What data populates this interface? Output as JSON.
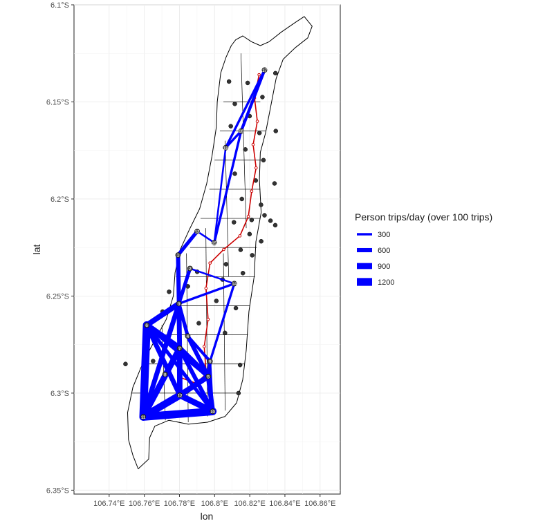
{
  "chart_data": {
    "type": "map",
    "xlabel": "lon",
    "ylabel": "lat",
    "x_ticks": [
      "106.74°E",
      "106.76°E",
      "106.78°E",
      "106.8°E",
      "106.82°E",
      "106.84°E",
      "106.86°E"
    ],
    "y_ticks": [
      "6.1°S",
      "6.15°S",
      "6.2°S",
      "6.25°S",
      "6.3°S",
      "6.35°S"
    ],
    "xlim": [
      106.72,
      106.8715
    ],
    "ylim": [
      -6.352,
      -6.1
    ],
    "grid": true,
    "legend": {
      "title": "Person trips/day (over 100 trips)",
      "position": "right",
      "items": [
        {
          "label": "300",
          "value": 300
        },
        {
          "label": "600",
          "value": 600
        },
        {
          "label": "900",
          "value": 900
        },
        {
          "label": "1200",
          "value": 1200
        }
      ]
    },
    "colors": {
      "flow": "#0000ff",
      "rail": "#cc0000",
      "boundary": "#000000",
      "centroid": "#333333",
      "grid": "#ebebeb"
    },
    "outline": [
      [
        106.8035,
        -6.135
      ],
      [
        106.8065,
        -6.127
      ],
      [
        106.8095,
        -6.121
      ],
      [
        106.812,
        -6.118
      ],
      [
        106.816,
        -6.116
      ],
      [
        106.821,
        -6.119
      ],
      [
        106.826,
        -6.121
      ],
      [
        106.831,
        -6.119
      ],
      [
        106.838,
        -6.114
      ],
      [
        106.846,
        -6.109
      ],
      [
        106.851,
        -6.106
      ],
      [
        106.8555,
        -6.111
      ],
      [
        106.853,
        -6.117
      ],
      [
        106.846,
        -6.122
      ],
      [
        106.839,
        -6.128
      ],
      [
        106.835,
        -6.138
      ],
      [
        106.832,
        -6.152
      ],
      [
        106.829,
        -6.166
      ],
      [
        106.826,
        -6.176
      ],
      [
        106.8255,
        -6.19
      ],
      [
        106.8265,
        -6.207
      ],
      [
        106.8235,
        -6.222
      ],
      [
        106.8225,
        -6.24
      ],
      [
        106.8195,
        -6.258
      ],
      [
        106.818,
        -6.278
      ],
      [
        106.816,
        -6.293
      ],
      [
        106.8125,
        -6.305
      ],
      [
        106.806,
        -6.312
      ],
      [
        106.796,
        -6.315
      ],
      [
        106.785,
        -6.316
      ],
      [
        106.774,
        -6.314
      ],
      [
        106.766,
        -6.317
      ],
      [
        106.763,
        -6.323
      ],
      [
        106.7625,
        -6.334
      ],
      [
        106.7565,
        -6.339
      ],
      [
        106.7535,
        -6.332
      ],
      [
        106.751,
        -6.324
      ],
      [
        106.7505,
        -6.31
      ],
      [
        106.7535,
        -6.297
      ],
      [
        106.758,
        -6.287
      ],
      [
        106.7635,
        -6.277
      ],
      [
        106.7725,
        -6.262
      ],
      [
        106.7765,
        -6.25
      ],
      [
        106.7775,
        -6.238
      ],
      [
        106.7805,
        -6.226
      ],
      [
        106.7855,
        -6.216
      ],
      [
        106.7915,
        -6.205
      ],
      [
        106.7955,
        -6.192
      ],
      [
        106.7985,
        -6.178
      ],
      [
        106.801,
        -6.163
      ],
      [
        106.8015,
        -6.15
      ]
    ],
    "districts": [
      [
        [
          106.805,
          -6.15
        ],
        [
          106.826,
          -6.15
        ]
      ],
      [
        [
          106.803,
          -6.165
        ],
        [
          106.829,
          -6.165
        ]
      ],
      [
        [
          106.8,
          -6.18
        ],
        [
          106.827,
          -6.18
        ]
      ],
      [
        [
          106.797,
          -6.195
        ],
        [
          106.826,
          -6.195
        ]
      ],
      [
        [
          106.792,
          -6.21
        ],
        [
          106.826,
          -6.21
        ]
      ],
      [
        [
          106.786,
          -6.225
        ],
        [
          106.824,
          -6.225
        ]
      ],
      [
        [
          106.778,
          -6.24
        ],
        [
          106.823,
          -6.24
        ]
      ],
      [
        [
          106.775,
          -6.255
        ],
        [
          106.82,
          -6.255
        ]
      ],
      [
        [
          106.768,
          -6.27
        ],
        [
          106.819,
          -6.27
        ]
      ],
      [
        [
          106.76,
          -6.285
        ],
        [
          106.817,
          -6.285
        ]
      ],
      [
        [
          106.753,
          -6.3
        ],
        [
          106.814,
          -6.3
        ]
      ],
      [
        [
          106.815,
          -6.125
        ],
        [
          106.818,
          -6.215
        ]
      ],
      [
        [
          106.806,
          -6.17
        ],
        [
          106.808,
          -6.24
        ]
      ],
      [
        [
          106.795,
          -6.215
        ],
        [
          106.796,
          -6.312
        ]
      ],
      [
        [
          106.784,
          -6.228
        ],
        [
          106.785,
          -6.315
        ]
      ],
      [
        [
          106.77,
          -6.265
        ],
        [
          106.772,
          -6.314
        ]
      ],
      [
        [
          106.805,
          -6.228
        ],
        [
          106.806,
          -6.309
        ]
      ]
    ],
    "nodes": [
      {
        "id": "1",
        "lon": 106.7792,
        "lat": -6.2289
      },
      {
        "id": "2",
        "lon": 106.786,
        "lat": -6.2358
      },
      {
        "id": "3",
        "lon": 106.7797,
        "lat": -6.2539
      },
      {
        "id": "4",
        "lon": 106.7847,
        "lat": -6.2706
      },
      {
        "id": "5",
        "lon": 106.7964,
        "lat": -6.2914
      },
      {
        "id": "6",
        "lon": 106.7614,
        "lat": -6.265
      },
      {
        "id": "7",
        "lon": 106.7801,
        "lat": -6.2769
      },
      {
        "id": "8",
        "lon": 106.7718,
        "lat": -6.2903
      },
      {
        "id": "9",
        "lon": 106.7974,
        "lat": -6.2836
      },
      {
        "id": "10",
        "lon": 106.7989,
        "lat": -6.3094
      },
      {
        "id": "11",
        "lon": 106.7594,
        "lat": -6.3122
      },
      {
        "id": "12",
        "lon": 106.7802,
        "lat": -6.3011
      },
      {
        "id": "13",
        "lon": 106.7901,
        "lat": -6.2167
      },
      {
        "id": "14",
        "lon": 106.8112,
        "lat": -6.2436
      },
      {
        "id": "15",
        "lon": 106.7998,
        "lat": -6.2225
      },
      {
        "id": "16",
        "lon": 106.8151,
        "lat": -6.165
      },
      {
        "id": "17",
        "lon": 106.8284,
        "lat": -6.1336
      },
      {
        "id": "18",
        "lon": 106.8063,
        "lat": -6.1736
      }
    ],
    "flows": [
      {
        "from": "11",
        "to": "10",
        "trips": 1200
      },
      {
        "from": "11",
        "to": "6",
        "trips": 1200
      },
      {
        "from": "11",
        "to": "12",
        "trips": 1100
      },
      {
        "from": "11",
        "to": "7",
        "trips": 900
      },
      {
        "from": "11",
        "to": "3",
        "trips": 700
      },
      {
        "from": "11",
        "to": "5",
        "trips": 600
      },
      {
        "from": "6",
        "to": "7",
        "trips": 900
      },
      {
        "from": "6",
        "to": "3",
        "trips": 800
      },
      {
        "from": "6",
        "to": "12",
        "trips": 700
      },
      {
        "from": "6",
        "to": "5",
        "trips": 600
      },
      {
        "from": "6",
        "to": "10",
        "trips": 500
      },
      {
        "from": "12",
        "to": "10",
        "trips": 900
      },
      {
        "from": "12",
        "to": "5",
        "trips": 800
      },
      {
        "from": "12",
        "to": "7",
        "trips": 800
      },
      {
        "from": "7",
        "to": "5",
        "trips": 800
      },
      {
        "from": "7",
        "to": "3",
        "trips": 700
      },
      {
        "from": "7",
        "to": "10",
        "trips": 600
      },
      {
        "from": "3",
        "to": "1",
        "trips": 600
      },
      {
        "from": "3",
        "to": "2",
        "trips": 500
      },
      {
        "from": "3",
        "to": "4",
        "trips": 500
      },
      {
        "from": "1",
        "to": "13",
        "trips": 500
      },
      {
        "from": "1",
        "to": "7",
        "trips": 400
      },
      {
        "from": "4",
        "to": "5",
        "trips": 600
      },
      {
        "from": "4",
        "to": "9",
        "trips": 400
      },
      {
        "from": "5",
        "to": "10",
        "trips": 700
      },
      {
        "from": "5",
        "to": "9",
        "trips": 500
      },
      {
        "from": "9",
        "to": "14",
        "trips": 300
      },
      {
        "from": "3",
        "to": "14",
        "trips": 300
      },
      {
        "from": "15",
        "to": "16",
        "trips": 300
      },
      {
        "from": "16",
        "to": "17",
        "trips": 400
      },
      {
        "from": "16",
        "to": "18",
        "trips": 300
      },
      {
        "from": "18",
        "to": "17",
        "trips": 300
      },
      {
        "from": "15",
        "to": "13",
        "trips": 200
      },
      {
        "from": "2",
        "to": "14",
        "trips": 200
      },
      {
        "from": "15",
        "to": "18",
        "trips": 200
      },
      {
        "from": "10",
        "to": "9",
        "trips": 300
      }
    ],
    "rail": [
      [
        106.8253,
        -6.136
      ],
      [
        106.8227,
        -6.148
      ],
      [
        106.8243,
        -6.16
      ],
      [
        106.8219,
        -6.172
      ],
      [
        106.8236,
        -6.184
      ],
      [
        106.8211,
        -6.196
      ],
      [
        106.8192,
        -6.209
      ],
      [
        106.8144,
        -6.219
      ],
      [
        106.8052,
        -6.226
      ],
      [
        106.7974,
        -6.233
      ],
      [
        106.7951,
        -6.246
      ],
      [
        106.7963,
        -6.262
      ],
      [
        106.7941,
        -6.276
      ],
      [
        106.7952,
        -6.29
      ],
      [
        106.7897,
        -6.295
      ],
      [
        106.7806,
        -6.292
      ]
    ],
    "centroids": [
      [
        106.8082,
        -6.1395
      ],
      [
        106.8188,
        -6.1402
      ],
      [
        106.8346,
        -6.1352
      ],
      [
        106.8115,
        -6.151
      ],
      [
        106.8272,
        -6.1475
      ],
      [
        106.8199,
        -6.1573
      ],
      [
        106.8092,
        -6.1625
      ],
      [
        106.8255,
        -6.166
      ],
      [
        106.8348,
        -6.165
      ],
      [
        106.8175,
        -6.1745
      ],
      [
        106.8278,
        -6.18
      ],
      [
        106.8115,
        -6.187
      ],
      [
        106.8234,
        -6.1905
      ],
      [
        106.8341,
        -6.192
      ],
      [
        106.8155,
        -6.2
      ],
      [
        106.8264,
        -6.203
      ],
      [
        106.811,
        -6.212
      ],
      [
        106.8211,
        -6.2108
      ],
      [
        106.8284,
        -6.2084
      ],
      [
        106.8318,
        -6.2112
      ],
      [
        106.8345,
        -6.2135
      ],
      [
        106.8199,
        -6.2181
      ],
      [
        106.8265,
        -6.2218
      ],
      [
        106.8148,
        -6.2262
      ],
      [
        106.8214,
        -6.229
      ],
      [
        106.8065,
        -6.2336
      ],
      [
        106.8161,
        -6.2382
      ],
      [
        106.8045,
        -6.2415
      ],
      [
        106.7901,
        -6.2375
      ],
      [
        106.7848,
        -6.245
      ],
      [
        106.801,
        -6.2525
      ],
      [
        106.7741,
        -6.2478
      ],
      [
        106.7704,
        -6.258
      ],
      [
        106.8121,
        -6.2562
      ],
      [
        106.791,
        -6.264
      ],
      [
        106.8059,
        -6.269
      ],
      [
        106.765,
        -6.2835
      ],
      [
        106.7713,
        -6.2772
      ],
      [
        106.8145,
        -6.2855
      ],
      [
        106.8136,
        -6.3
      ],
      [
        106.7493,
        -6.285
      ]
    ]
  }
}
